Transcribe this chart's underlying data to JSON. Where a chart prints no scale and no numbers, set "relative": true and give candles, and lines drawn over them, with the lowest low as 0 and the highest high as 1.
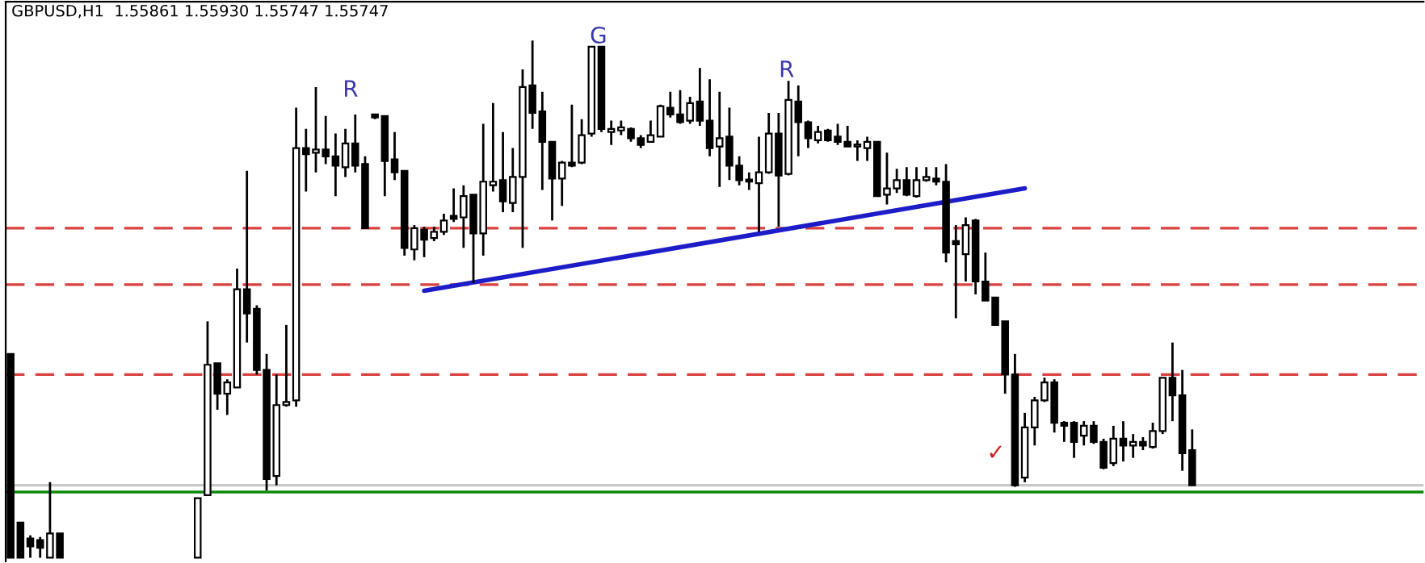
{
  "chart_data": {
    "type": "candlestick",
    "title": "GBPUSD,H1  1.55861 1.55930 1.55747 1.55747",
    "relative": true,
    "legend": false,
    "tick_labels": false,
    "categories": [
      null,
      null,
      null,
      null,
      null,
      null,
      null,
      null,
      null,
      null,
      null,
      null,
      null,
      null,
      null,
      null,
      null,
      null,
      null,
      null,
      null,
      null,
      null,
      null,
      null,
      null,
      null,
      null,
      null,
      null,
      null,
      null,
      null,
      null,
      null,
      null,
      null,
      null,
      null,
      null,
      null,
      null,
      null,
      null,
      null,
      null,
      null,
      null,
      null,
      null,
      null,
      null,
      null,
      null,
      null,
      null,
      null,
      null,
      null,
      null,
      null,
      null,
      null,
      null,
      null,
      null,
      null,
      null,
      null,
      null,
      null,
      null,
      null,
      null,
      null,
      null,
      null,
      null,
      null,
      null,
      null,
      null,
      null,
      null,
      null,
      null,
      null,
      null,
      null,
      null,
      null,
      null,
      null,
      null,
      null,
      null,
      null,
      null,
      null,
      null,
      null,
      null,
      null,
      null,
      null,
      null,
      null,
      null,
      null,
      null,
      null,
      null,
      null,
      null,
      null,
      null,
      null,
      null,
      null,
      null,
      null
    ],
    "ohlc": [
      [
        0.394,
        0.394,
        0,
        0
      ],
      [
        0.068,
        0.068,
        0,
        0
      ],
      [
        0.037,
        0.043,
        0,
        0.022
      ],
      [
        0.034,
        0.04,
        0,
        0.019
      ],
      [
        0,
        0.146,
        0,
        0.047
      ],
      [
        0.047,
        0.047,
        0,
        0
      ],
      null,
      null,
      null,
      null,
      null,
      null,
      null,
      null,
      null,
      null,
      null,
      null,
      null,
      [
        0,
        0.115,
        0,
        0.115
      ],
      [
        0.121,
        0.457,
        0.121,
        0.373
      ],
      [
        0.376,
        0.376,
        0.286,
        0.317
      ],
      [
        0.317,
        0.345,
        0.276,
        0.339
      ],
      [
        0.329,
        0.559,
        0.329,
        0.519
      ],
      [
        0.519,
        0.748,
        0.416,
        0.472
      ],
      [
        0.481,
        0.488,
        0.354,
        0.363
      ],
      [
        0.363,
        0.394,
        0.13,
        0.152
      ],
      [
        0.158,
        0.354,
        0.14,
        0.295
      ],
      [
        0.295,
        0.45,
        0.292,
        0.301
      ],
      [
        0.304,
        0.87,
        0.292,
        0.792
      ],
      [
        0.792,
        0.829,
        0.708,
        0.78
      ],
      [
        0.783,
        0.91,
        0.745,
        0.789
      ],
      [
        0.789,
        0.854,
        0.761,
        0.776
      ],
      [
        0.776,
        0.82,
        0.699,
        0.758
      ],
      [
        0.755,
        0.829,
        0.736,
        0.801
      ],
      [
        0.801,
        0.857,
        0.745,
        0.758
      ],
      [
        0.761,
        0.776,
        0.637,
        0.637
      ],
      [
        0.857,
        0.857,
        0.848,
        0.851
      ],
      [
        0.854,
        0.854,
        0.699,
        0.767
      ],
      [
        0.77,
        0.823,
        0.73,
        0.745
      ],
      [
        0.748,
        0.748,
        0.584,
        0.599
      ],
      [
        0.596,
        0.643,
        0.575,
        0.637
      ],
      [
        0.634,
        0.64,
        0.581,
        0.615
      ],
      [
        0.618,
        0.64,
        0.612,
        0.63
      ],
      [
        0.63,
        0.665,
        0.624,
        0.652
      ],
      [
        0.661,
        0.714,
        0.649,
        0.655
      ],
      [
        0.658,
        0.72,
        0.599,
        0.699
      ],
      [
        0.702,
        0.702,
        0.531,
        0.627
      ],
      [
        0.627,
        0.839,
        0.584,
        0.727
      ],
      [
        0.72,
        0.879,
        0.708,
        0.727
      ],
      [
        0.73,
        0.823,
        0.668,
        0.689
      ],
      [
        0.686,
        0.792,
        0.668,
        0.736
      ],
      [
        0.736,
        0.944,
        0.599,
        0.91
      ],
      [
        0.913,
        1.0,
        0.829,
        0.86
      ],
      [
        0.863,
        0.901,
        0.711,
        0.804
      ],
      [
        0.804,
        0.804,
        0.652,
        0.733
      ],
      [
        0.733,
        0.767,
        0.68,
        0.764
      ],
      [
        0.764,
        0.876,
        0.755,
        0.758
      ],
      [
        0.764,
        0.848,
        0.761,
        0.817
      ],
      [
        0.82,
        0.988,
        0.814,
        0.988
      ],
      [
        0.988,
        0.988,
        0.823,
        0.829
      ],
      [
        0.823,
        0.845,
        0.798,
        0.829
      ],
      [
        0.826,
        0.845,
        0.817,
        0.832
      ],
      [
        0.829,
        0.832,
        0.804,
        0.811
      ],
      [
        0.811,
        0.817,
        0.792,
        0.798
      ],
      [
        0.804,
        0.845,
        0.804,
        0.817
      ],
      [
        0.814,
        0.876,
        0.814,
        0.873
      ],
      [
        0.87,
        0.901,
        0.851,
        0.857
      ],
      [
        0.857,
        0.904,
        0.839,
        0.842
      ],
      [
        0.845,
        0.891,
        0.839,
        0.879
      ],
      [
        0.882,
        0.947,
        0.835,
        0.845
      ],
      [
        0.845,
        0.925,
        0.776,
        0.792
      ],
      [
        0.795,
        0.901,
        0.717,
        0.811
      ],
      [
        0.814,
        0.87,
        0.73,
        0.758
      ],
      [
        0.758,
        0.776,
        0.72,
        0.73
      ],
      [
        0.73,
        0.745,
        0.711,
        0.727
      ],
      [
        0.724,
        0.814,
        0.63,
        0.745
      ],
      [
        0.745,
        0.86,
        0.742,
        0.82
      ],
      [
        0.82,
        0.86,
        0.64,
        0.739
      ],
      [
        0.742,
        0.922,
        0.739,
        0.885
      ],
      [
        0.882,
        0.913,
        0.776,
        0.842
      ],
      [
        0.842,
        0.845,
        0.792,
        0.811
      ],
      [
        0.807,
        0.835,
        0.801,
        0.823
      ],
      [
        0.826,
        0.829,
        0.804,
        0.807
      ],
      [
        0.814,
        0.839,
        0.798,
        0.804
      ],
      [
        0.804,
        0.835,
        0.795,
        0.795
      ],
      [
        0.795,
        0.807,
        0.767,
        0.798
      ],
      [
        0.792,
        0.814,
        0.767,
        0.804
      ],
      [
        0.804,
        0.804,
        0.699,
        0.699
      ],
      [
        0.702,
        0.783,
        0.683,
        0.714
      ],
      [
        0.714,
        0.752,
        0.705,
        0.73
      ],
      [
        0.73,
        0.755,
        0.699,
        0.702
      ],
      [
        0.699,
        0.755,
        0.696,
        0.73
      ],
      [
        0.73,
        0.755,
        0.727,
        0.736
      ],
      [
        0.733,
        0.755,
        0.72,
        0.727
      ],
      [
        0.727,
        0.761,
        0.571,
        0.59
      ],
      [
        0.612,
        0.643,
        0.463,
        0.606
      ],
      [
        0.587,
        0.658,
        0.534,
        0.643
      ],
      [
        0.652,
        0.655,
        0.509,
        0.534
      ],
      [
        0.534,
        0.59,
        0.497,
        0.497
      ],
      [
        0.503,
        0.503,
        0.45,
        0.45
      ],
      [
        0.457,
        0.457,
        0.317,
        0.354
      ],
      [
        0.354,
        0.394,
        0.137,
        0.14
      ],
      [
        0.155,
        0.28,
        0.146,
        0.252
      ],
      [
        0.252,
        0.311,
        0.217,
        0.304
      ],
      [
        0.304,
        0.348,
        0.301,
        0.339
      ],
      [
        0.339,
        0.345,
        0.242,
        0.261
      ],
      [
        0.261,
        0.264,
        0.224,
        0.255
      ],
      [
        0.261,
        0.264,
        0.193,
        0.224
      ],
      [
        0.236,
        0.264,
        0.217,
        0.255
      ],
      [
        0.255,
        0.264,
        0.22,
        0.224
      ],
      [
        0.224,
        0.23,
        0.171,
        0.174
      ],
      [
        0.183,
        0.255,
        0.177,
        0.23
      ],
      [
        0.23,
        0.264,
        0.186,
        0.217
      ],
      [
        0.217,
        0.239,
        0.193,
        0.224
      ],
      [
        0.224,
        0.233,
        0.208,
        0.217
      ],
      [
        0.214,
        0.261,
        0.211,
        0.245
      ],
      [
        0.245,
        0.348,
        0.239,
        0.348
      ],
      [
        0.348,
        0.416,
        0.264,
        0.314
      ],
      [
        0.314,
        0.363,
        0.168,
        0.202
      ],
      [
        0.208,
        0.248,
        0.14,
        0.14
      ]
    ],
    "series": [
      {
        "type": "line",
        "color": "#1c1cc8",
        "values": [
          null,
          null,
          null,
          null,
          null,
          null,
          null,
          null,
          null,
          null,
          null,
          null,
          null,
          null,
          null,
          null,
          null,
          null,
          null,
          null,
          null,
          null,
          null,
          null,
          null,
          null,
          null,
          null,
          null,
          null,
          null,
          null,
          null,
          null,
          null,
          null,
          null,
          null,
          null,
          null,
          null,
          null,
          0.516,
          null,
          null,
          null,
          null,
          null,
          null,
          null,
          null,
          null,
          null,
          null,
          null,
          null,
          null,
          null,
          null,
          null,
          null,
          null,
          null,
          null,
          null,
          null,
          null,
          null,
          null,
          null,
          null,
          null,
          null,
          null,
          null,
          null,
          null,
          null,
          null,
          null,
          null,
          null,
          null,
          null,
          null,
          null,
          null,
          null,
          null,
          null,
          null,
          null,
          null,
          null,
          null,
          null,
          null,
          null,
          null,
          null,
          null,
          null,
          null,
          0.714,
          null,
          null,
          null,
          null,
          null,
          null,
          null,
          null,
          null,
          null,
          null,
          null,
          null,
          null,
          null,
          null,
          null
        ]
      }
    ],
    "ref_lines": [
      {
        "axis": "y",
        "value": 0.637,
        "color": "#d94040",
        "line_style": "dashed"
      },
      {
        "axis": "y",
        "value": 0.528,
        "color": "#d94040",
        "line_style": "dashed"
      },
      {
        "axis": "y",
        "value": 0.354,
        "color": "#d94040",
        "line_style": "dashed"
      },
      {
        "axis": "y",
        "value": 0.14,
        "color": "#c8c8c8",
        "line_style": "solid"
      },
      {
        "axis": "y",
        "value": 0.127,
        "color": "#0a8a0a",
        "line_style": "solid"
      }
    ],
    "annotations": [
      "R",
      "G",
      "R",
      "✓"
    ]
  }
}
